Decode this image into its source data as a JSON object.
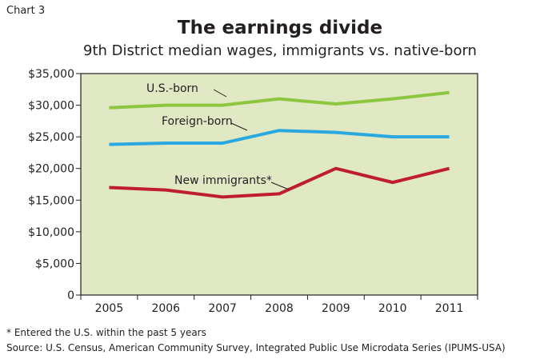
{
  "chart_label": "Chart 3",
  "footnotes": {
    "note": "* Entered the U.S. within the past 5 years",
    "source": "Source: U.S. Census, American Community Survey, Integrated Public Use Microdata Series (IPUMS-USA)"
  },
  "chart_data": {
    "type": "line",
    "title": "The earnings divide",
    "subtitle": "9th District median wages, immigrants vs. native-born",
    "xlabel": "",
    "ylabel": "",
    "x": [
      "2005",
      "2006",
      "2007",
      "2008",
      "2009",
      "2010",
      "2011"
    ],
    "ylim": [
      0,
      35000
    ],
    "yticks": [
      0,
      5000,
      10000,
      15000,
      20000,
      25000,
      30000,
      35000
    ],
    "ytick_labels": [
      "0",
      "$5,000",
      "$10,000",
      "$15,000",
      "$20,000",
      "$25,000",
      "$30,000",
      "$35,000"
    ],
    "grid": false,
    "plot_background": "#e1e8c4",
    "series": [
      {
        "name": "U.S.-born",
        "color": "#8dc63f",
        "values": [
          29600,
          30000,
          30000,
          31000,
          30200,
          31000,
          32000
        ]
      },
      {
        "name": "Foreign-born",
        "color": "#29a9e0",
        "values": [
          23800,
          24000,
          24000,
          26000,
          25700,
          25000,
          25000
        ]
      },
      {
        "name": "New immigrants*",
        "color": "#be1e2d",
        "values": [
          17000,
          16600,
          15500,
          16000,
          20000,
          17800,
          20000
        ]
      }
    ]
  }
}
